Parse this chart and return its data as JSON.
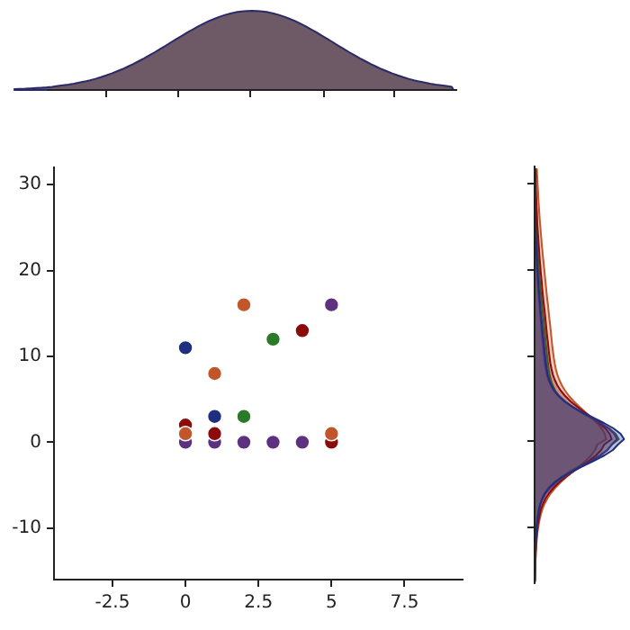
{
  "chart_data": {
    "type": "scatter",
    "xlim": [
      -4.5,
      9.5
    ],
    "ylim": [
      -16,
      32
    ],
    "xticks": [
      -2.5,
      0,
      2.5,
      5,
      7.5
    ],
    "yticks": [
      -10,
      0,
      10,
      20,
      30
    ],
    "grid": false,
    "marker": "circle",
    "series": [
      {
        "color": "#1f2f80",
        "x": [
          0,
          1
        ],
        "values": [
          11,
          3
        ]
      },
      {
        "color": "#c0562a",
        "x": [
          2,
          1,
          0,
          5
        ],
        "values": [
          16,
          8,
          1,
          1
        ]
      },
      {
        "color": "#2a7a2a",
        "x": [
          3,
          2
        ],
        "values": [
          12,
          3
        ]
      },
      {
        "color": "#8b0a0a",
        "x": [
          4,
          0,
          1,
          5
        ],
        "values": [
          13,
          2,
          1,
          0
        ]
      },
      {
        "color": "#5e3080",
        "x": [
          5,
          0,
          1,
          2,
          3,
          4
        ],
        "values": [
          16,
          0,
          0,
          0,
          0,
          0
        ]
      }
    ]
  }
}
